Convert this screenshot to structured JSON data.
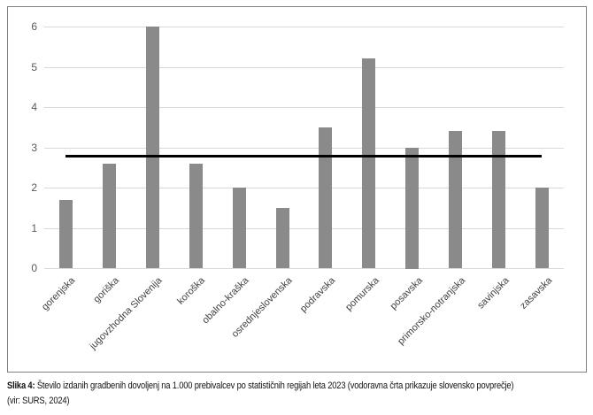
{
  "figure": {
    "caption": {
      "label": "Slika 4:",
      "text": "Število izdanih gradbenih dovoljenj na 1.000 prebivalcev po statističnih regijah leta 2023 (vodoravna črta prikazuje slovensko povprečje)",
      "source": "(vir: SURS, 2024)"
    }
  },
  "chart_data": {
    "type": "bar",
    "title": "",
    "xlabel": "",
    "ylabel": "",
    "categories": [
      "gorenjska",
      "goriška",
      "jugovzhodna Slovenija",
      "koroška",
      "obalno-kraška",
      "osrednjeslovenska",
      "podravska",
      "pomurska",
      "posavska",
      "primorsko-notranjska",
      "savinjska",
      "zasavska"
    ],
    "values": [
      1.7,
      2.6,
      6.0,
      2.6,
      2.0,
      1.5,
      3.5,
      5.2,
      3.0,
      3.4,
      3.4,
      2.0
    ],
    "average_line_value": 2.8,
    "ylim": [
      0,
      6
    ],
    "yticks": [
      0,
      1,
      2,
      3,
      4,
      5,
      6
    ],
    "grid": true,
    "legend_position": "none",
    "colors": {
      "bar": "#8a8a8a",
      "average_line": "#000000",
      "gridline": "#d9d9d9",
      "frame_border": "#808080",
      "axis_label": "#595959",
      "category_label": "#404040"
    }
  }
}
